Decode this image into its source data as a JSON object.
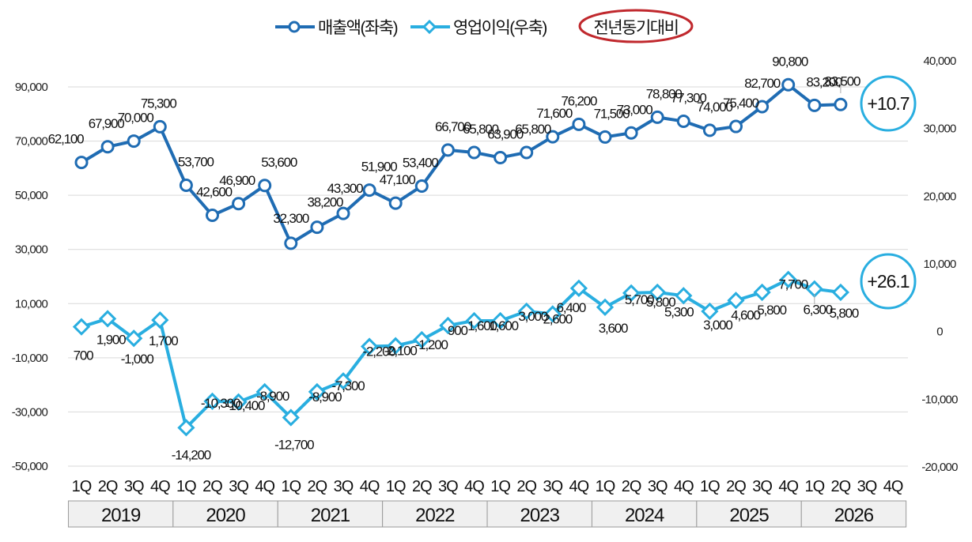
{
  "chart_data": {
    "type": "line",
    "legend": {
      "position": "top-center",
      "items": [
        {
          "label": "매출액(좌축)",
          "color": "#1f6cb3",
          "marker": "circle"
        },
        {
          "label": "영업이익(우축)",
          "color": "#29aee0",
          "marker": "diamond"
        },
        {
          "label": "전년동기대비",
          "color": "#c0282d",
          "marker": "ellipse-outline"
        }
      ]
    },
    "quarters": [
      "1Q",
      "2Q",
      "3Q",
      "4Q",
      "1Q",
      "2Q",
      "3Q",
      "4Q",
      "1Q",
      "2Q",
      "3Q",
      "4Q",
      "1Q",
      "2Q",
      "3Q",
      "4Q",
      "1Q",
      "2Q",
      "3Q",
      "4Q",
      "1Q",
      "2Q",
      "3Q",
      "4Q",
      "1Q",
      "2Q",
      "3Q",
      "4Q",
      "1Q",
      "2Q",
      "3Q",
      "4Q"
    ],
    "years": [
      "2019",
      "2020",
      "2021",
      "2022",
      "2023",
      "2024",
      "2025",
      "2026"
    ],
    "left_axis": {
      "ylim": [
        -50000,
        90000
      ],
      "ticks": [
        "90,000",
        "70,000",
        "50,000",
        "30,000",
        "10,000",
        "-10,000",
        "-30,000",
        "-50,000"
      ]
    },
    "right_axis": {
      "ylim": [
        -20000,
        40000
      ],
      "ticks": [
        "40,000",
        "30,000",
        "20,000",
        "10,000",
        "0",
        "-10,000",
        "-20,000"
      ]
    },
    "grid": true,
    "series": [
      {
        "name": "매출액(좌축)",
        "axis": "left",
        "color": "#1f6cb3",
        "values": [
          62100,
          67900,
          70000,
          75300,
          53700,
          42600,
          46900,
          53600,
          32300,
          38200,
          43300,
          51900,
          47100,
          53400,
          66700,
          65800,
          63900,
          65800,
          71600,
          76200,
          71500,
          73000,
          78800,
          77300,
          74000,
          75400,
          82700,
          90800,
          83200,
          83500
        ],
        "labels": [
          "62,100",
          "67,900",
          "70,000",
          "75,300",
          "53,700",
          "42,600",
          "46,900",
          "53,600",
          "32,300",
          "38,200",
          "43,300",
          "51,900",
          "47,100",
          "53,400",
          "66,700",
          "65,800",
          "63,900",
          "65,800",
          "71,600",
          "76,200",
          "71,500",
          "73,000",
          "78,800",
          "77,300",
          "74,000",
          "75,400",
          "82,700",
          "90,800",
          "83,200",
          "83,500"
        ]
      },
      {
        "name": "영업이익(우축)",
        "axis": "right",
        "color": "#29aee0",
        "values": [
          700,
          1900,
          -1000,
          1700,
          -14200,
          -10300,
          -10400,
          -8900,
          -12700,
          -8900,
          -7300,
          -2200,
          -2100,
          -1200,
          900,
          1600,
          1600,
          3000,
          2600,
          6400,
          3600,
          5700,
          5800,
          5300,
          3000,
          4600,
          5800,
          7700,
          6300,
          5800
        ],
        "labels": [
          "700",
          "1,900",
          "-1,000",
          "1,700",
          "-14,200",
          "-10,300",
          "-10,400",
          "-8,900",
          "-12,700",
          "-8,900",
          "-7,300",
          "-2,200",
          "-2,100",
          "-1,200",
          "900",
          "1,600",
          "1,600",
          "3,000",
          "2,600",
          "6,400",
          "3,600",
          "5,700",
          "5,800",
          "5,300",
          "3,000",
          "4,600",
          "5,800",
          "7,700",
          "6,300",
          "5,800"
        ]
      }
    ],
    "annotations": [
      {
        "text": "+10.7",
        "series": "매출액(좌축)"
      },
      {
        "text": "+26.1",
        "series": "영업이익(우축)"
      }
    ]
  }
}
